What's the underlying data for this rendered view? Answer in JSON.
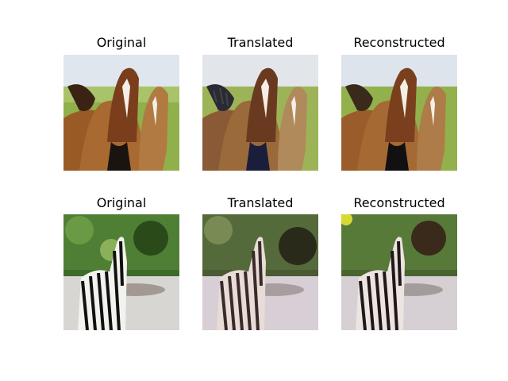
{
  "rows": [
    {
      "subject": "horses",
      "panels": [
        {
          "title": "Original",
          "variant": "original"
        },
        {
          "title": "Translated",
          "variant": "translated"
        },
        {
          "title": "Reconstructed",
          "variant": "reconstructed"
        }
      ]
    },
    {
      "subject": "zebra",
      "panels": [
        {
          "title": "Original",
          "variant": "original"
        },
        {
          "title": "Translated",
          "variant": "translated"
        },
        {
          "title": "Reconstructed",
          "variant": "reconstructed"
        }
      ]
    }
  ],
  "palette": {
    "sky": "#dfe6ee",
    "grass": "#8fb04a",
    "horse_brown": "#9a5a26",
    "horse_dark": "#3a2214",
    "blaze": "#f4efe6",
    "foliage": "#3f6b2a",
    "foliage_dark": "#1f3a14",
    "ground": "#d8d6d2",
    "stripe": "#111111"
  }
}
